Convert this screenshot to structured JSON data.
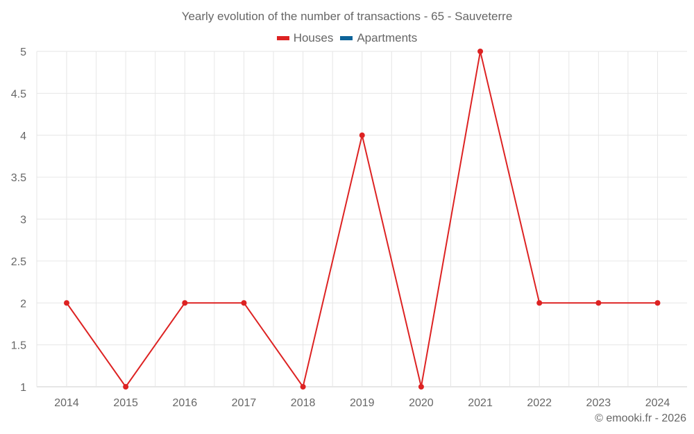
{
  "title": "Yearly evolution of the number of transactions - 65 - Sauveterre",
  "legend": [
    {
      "label": "Houses",
      "color": "#dd2222"
    },
    {
      "label": "Apartments",
      "color": "#0d6499"
    }
  ],
  "credit": "© emooki.fr - 2026",
  "chart_data": {
    "type": "line",
    "title": "Yearly evolution of the number of transactions - 65 - Sauveterre",
    "xlabel": "",
    "ylabel": "",
    "categories": [
      "2014",
      "2015",
      "2016",
      "2017",
      "2018",
      "2019",
      "2020",
      "2021",
      "2022",
      "2023",
      "2024"
    ],
    "series": [
      {
        "name": "Houses",
        "color": "#dd2222",
        "values": [
          2,
          1,
          2,
          2,
          1,
          4,
          1,
          5,
          2,
          2,
          2
        ]
      },
      {
        "name": "Apartments",
        "color": "#0d6499",
        "values": []
      }
    ],
    "ylim": [
      1,
      5
    ],
    "yticks": [
      "1",
      "1.5",
      "2",
      "2.5",
      "3",
      "3.5",
      "4",
      "4.5",
      "5"
    ],
    "grid": true,
    "legend_position": "top"
  }
}
